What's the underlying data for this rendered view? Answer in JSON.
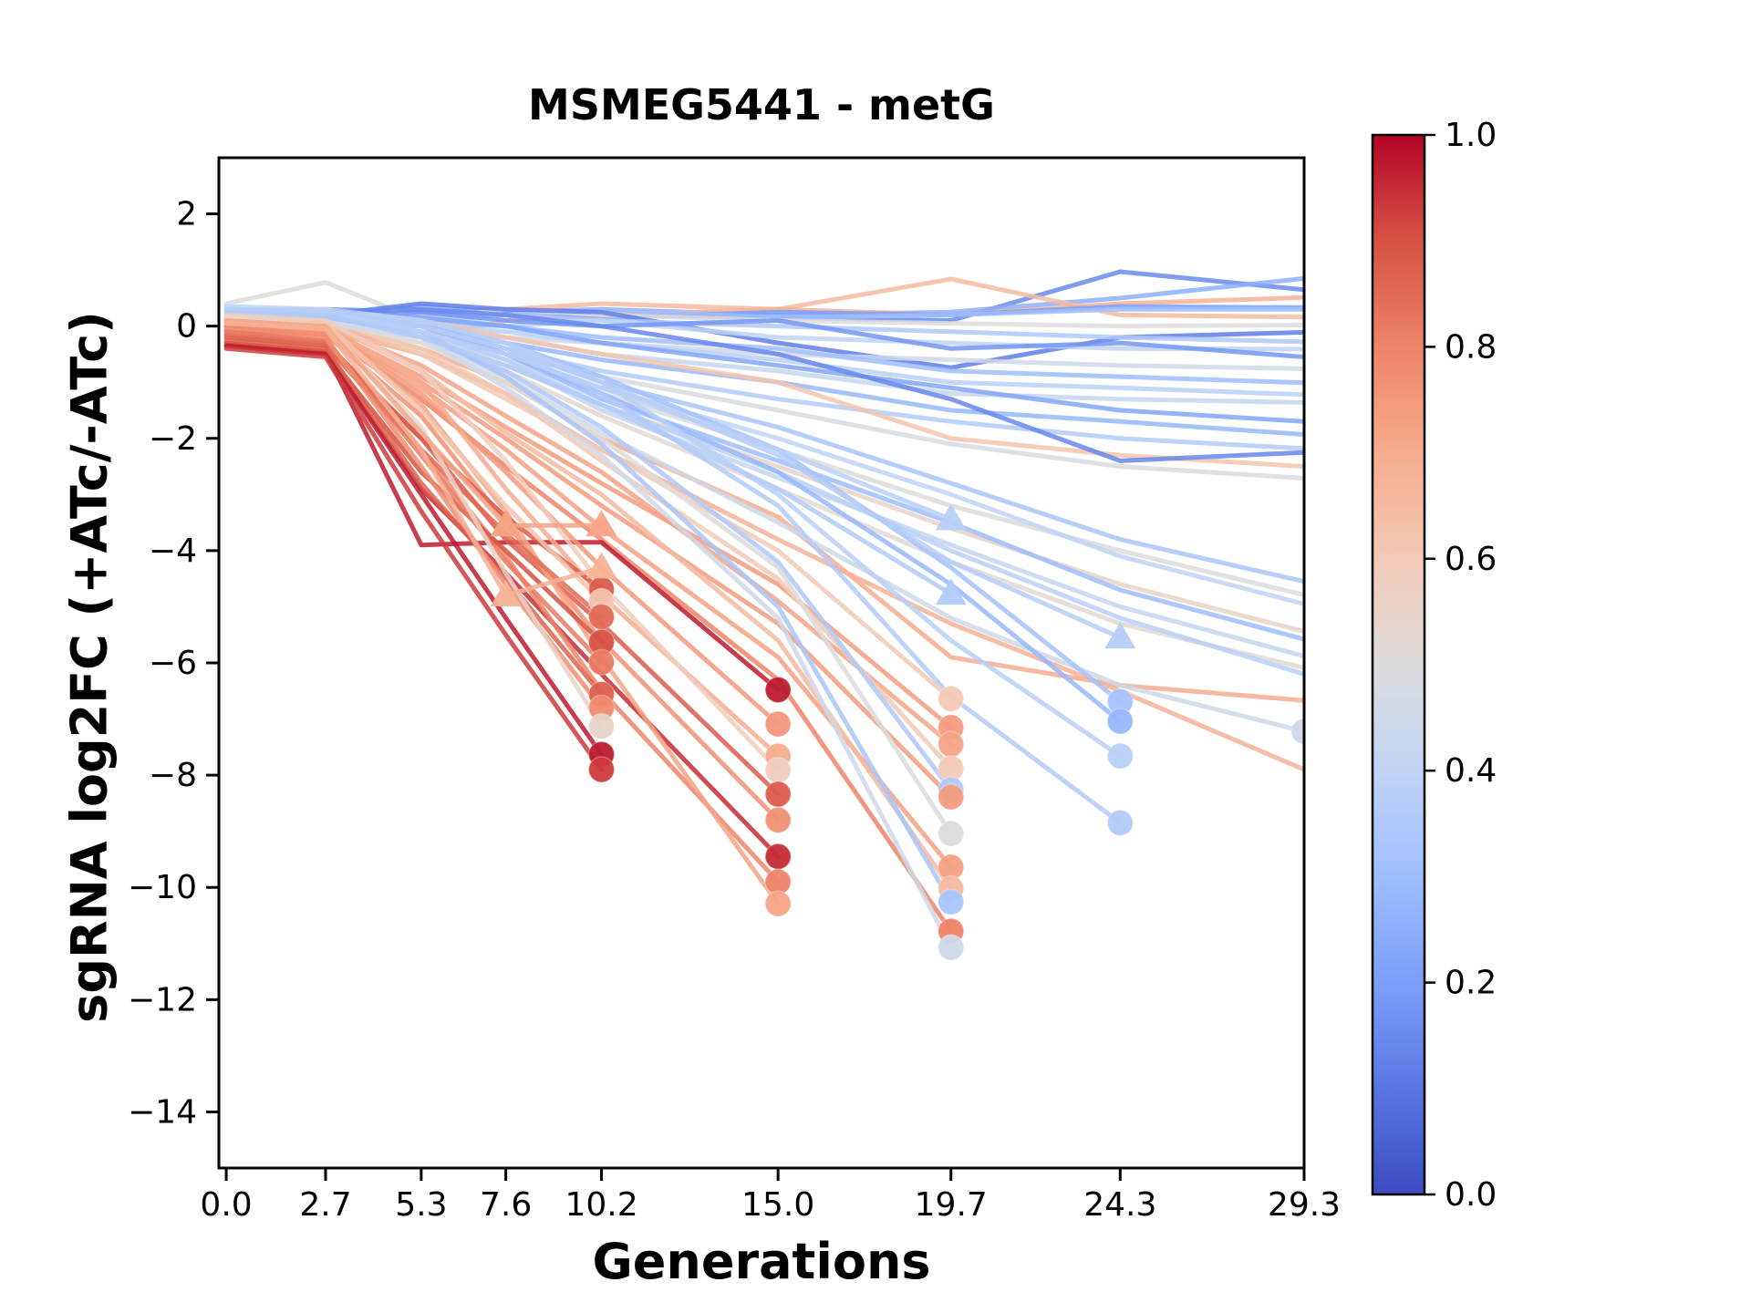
{
  "chart_data": {
    "type": "line",
    "title": "MSMEG5441 - metG",
    "xlabel": "Generations",
    "ylabel": "sgRNA log2FC (+ATc/-ATc)",
    "xlim": [
      -0.2,
      29.3
    ],
    "ylim": [
      -15,
      3
    ],
    "grid": false,
    "x_samples": [
      0.0,
      2.7,
      5.3,
      7.6,
      10.2,
      15.0,
      19.7,
      24.3,
      29.3
    ],
    "x_tick_labels": [
      "0.0",
      "2.7",
      "5.3",
      "7.6",
      "10.2",
      "15.0",
      "19.7",
      "24.3",
      "29.3"
    ],
    "y_ticks": [
      2,
      0,
      -2,
      -4,
      -6,
      -8,
      -10,
      -12,
      -14
    ],
    "y_tick_labels": [
      "2",
      "0",
      "−2",
      "−4",
      "−6",
      "−8",
      "−10",
      "−12",
      "−14"
    ],
    "colorbar": {
      "tick_values": [
        0.0,
        0.2,
        0.4,
        0.6,
        0.8,
        1.0
      ],
      "tick_labels": [
        "0.0",
        "0.2",
        "0.4",
        "0.6",
        "0.8",
        "1.0"
      ],
      "cmap_name": "coolwarm",
      "stops": [
        [
          0.0,
          "#3b4cc0"
        ],
        [
          0.1,
          "#5977e3"
        ],
        [
          0.2,
          "#7b9ff9"
        ],
        [
          0.3,
          "#9ebeff"
        ],
        [
          0.4,
          "#c0d4f5"
        ],
        [
          0.5,
          "#dddcdc"
        ],
        [
          0.6,
          "#f2cab5"
        ],
        [
          0.7,
          "#f7ac8e"
        ],
        [
          0.8,
          "#ee8468"
        ],
        [
          0.9,
          "#d65244"
        ],
        [
          1.0,
          "#b40426"
        ]
      ]
    },
    "series": [
      {
        "c": 0.15,
        "y": [
          0.2,
          0.3,
          0.25,
          0.3,
          0.2,
          0.15,
          0.1,
          0.97,
          0.65
        ]
      },
      {
        "c": 0.25,
        "y": [
          0.3,
          0.2,
          0.35,
          0.25,
          0.3,
          0.2,
          0.25,
          0.5,
          0.85
        ]
      },
      {
        "c": 0.65,
        "y": [
          0.1,
          0.2,
          0.1,
          0.3,
          0.4,
          0.3,
          0.84,
          0.2,
          0.16
        ]
      },
      {
        "c": 0.68,
        "y": [
          0.0,
          0.1,
          -0.2,
          0.1,
          0.2,
          0.3,
          0.2,
          0.4,
          0.51
        ]
      },
      {
        "c": 0.2,
        "y": [
          0.25,
          0.3,
          0.2,
          0.25,
          0.15,
          0.25,
          0.2,
          0.35,
          0.33
        ]
      },
      {
        "c": 0.3,
        "y": [
          0.2,
          0.25,
          0.3,
          0.2,
          0.3,
          0.15,
          0.2,
          0.3,
          0.3
        ]
      },
      {
        "c": 0.5,
        "y": [
          0.4,
          0.78,
          0.1,
          0.3,
          0.2,
          0.1,
          0.05,
          0.0,
          0.02
        ]
      },
      {
        "c": 0.12,
        "y": [
          0.15,
          0.2,
          0.4,
          0.3,
          0.25,
          -0.3,
          -0.74,
          -0.2,
          -0.11
        ]
      },
      {
        "c": 0.35,
        "y": [
          0.3,
          0.2,
          0.1,
          0.2,
          0.1,
          0.0,
          -0.1,
          -0.2,
          -0.28
        ]
      },
      {
        "c": 0.4,
        "y": [
          0.2,
          0.1,
          0.2,
          0.0,
          0.1,
          -0.2,
          -0.3,
          -0.4,
          -0.41
        ]
      },
      {
        "c": 0.18,
        "y": [
          0.1,
          0.15,
          0.25,
          0.1,
          0.0,
          0.1,
          -0.4,
          -0.3,
          -0.55
        ]
      },
      {
        "c": 0.45,
        "y": [
          0.3,
          0.3,
          0.0,
          -0.2,
          -0.3,
          -0.5,
          -0.6,
          -0.7,
          -0.76
        ]
      },
      {
        "c": 0.3,
        "y": [
          0.25,
          0.2,
          0.1,
          0.0,
          -0.2,
          -0.4,
          -0.8,
          -0.9,
          -1.01
        ]
      },
      {
        "c": 0.38,
        "y": [
          0.2,
          0.15,
          0.05,
          -0.1,
          -0.3,
          -0.6,
          -1.0,
          -1.1,
          -1.22
        ]
      },
      {
        "c": 0.42,
        "y": [
          0.15,
          0.1,
          0.0,
          -0.2,
          -0.5,
          -0.8,
          -1.2,
          -1.3,
          -1.36
        ]
      },
      {
        "c": 0.22,
        "y": [
          0.2,
          0.25,
          0.15,
          0.0,
          -0.3,
          -0.7,
          -1.1,
          -1.5,
          -1.7
        ]
      },
      {
        "c": 0.28,
        "y": [
          0.3,
          0.2,
          0.0,
          -0.3,
          -0.6,
          -1.0,
          -1.5,
          -1.7,
          -1.93
        ]
      },
      {
        "c": 0.36,
        "y": [
          0.25,
          0.15,
          -0.1,
          -0.4,
          -0.8,
          -1.3,
          -1.7,
          -2.0,
          -2.18
        ]
      },
      {
        "c": 0.62,
        "y": [
          0.2,
          0.3,
          0.1,
          -0.2,
          -0.5,
          -1.0,
          -2.0,
          -2.3,
          -2.5
        ]
      },
      {
        "c": 0.48,
        "y": [
          0.2,
          0.1,
          -0.1,
          -0.5,
          -0.9,
          -1.5,
          -2.1,
          -2.5,
          -2.71
        ]
      },
      {
        "c": 0.14,
        "y": [
          0.15,
          0.25,
          0.3,
          0.2,
          0.0,
          -0.5,
          -1.3,
          -2.4,
          -2.25
        ]
      },
      {
        "c": 0.33,
        "y": [
          0.2,
          0.1,
          0.0,
          -0.4,
          -1.0,
          -1.8,
          -2.8,
          -3.8,
          -4.55
        ]
      },
      {
        "c": 0.5,
        "y": [
          0.3,
          0.2,
          -0.1,
          -0.6,
          -1.2,
          -2.2,
          -3.2,
          -4.0,
          -4.79
        ]
      },
      {
        "c": 0.4,
        "y": [
          0.25,
          0.15,
          -0.1,
          -0.5,
          -1.1,
          -2.0,
          -3.0,
          -4.1,
          -4.95
        ]
      },
      {
        "c": 0.55,
        "y": [
          0.2,
          0.1,
          -0.2,
          -0.7,
          -1.4,
          -2.5,
          -3.6,
          -4.6,
          -5.44
        ]
      },
      {
        "c": 0.3,
        "y": [
          0.3,
          0.2,
          0.0,
          -0.5,
          -1.3,
          -2.4,
          -3.5,
          -4.7,
          -5.58
        ]
      },
      {
        "c": 0.42,
        "y": [
          0.2,
          0.15,
          -0.15,
          -0.6,
          -1.5,
          -2.7,
          -3.9,
          -5.0,
          -5.88
        ]
      },
      {
        "c": 0.52,
        "y": [
          0.15,
          0.05,
          -0.3,
          -0.8,
          -1.6,
          -2.9,
          -4.2,
          -5.3,
          -6.09
        ]
      },
      {
        "c": 0.38,
        "y": [
          0.25,
          0.2,
          -0.1,
          -0.6,
          -1.4,
          -2.6,
          -4.0,
          -5.2,
          -6.2
        ]
      },
      {
        "c": 0.7,
        "y": [
          0.1,
          0.0,
          -0.4,
          -1.0,
          -2.0,
          -3.4,
          -5.9,
          -6.4,
          -6.67
        ]
      },
      {
        "c": 0.68,
        "y": [
          0.05,
          -0.05,
          -0.5,
          -1.2,
          -2.2,
          -3.8,
          -5.3,
          -6.5,
          -7.9
        ]
      },
      {
        "c": 0.45,
        "m": "c",
        "y": [
          0.2,
          0.1,
          -0.3,
          -0.9,
          -1.9,
          -3.5,
          -5.2,
          -6.4,
          -7.22
        ]
      },
      {
        "c": 0.32,
        "m": "c",
        "y": [
          0.3,
          0.25,
          0.1,
          -0.3,
          -0.9,
          -2.2,
          -4.3,
          -6.69
        ]
      },
      {
        "c": 0.28,
        "m": "c",
        "y": [
          0.25,
          0.2,
          0.0,
          -0.5,
          -1.2,
          -2.6,
          -4.6,
          -7.04
        ]
      },
      {
        "c": 0.38,
        "m": "c",
        "y": [
          0.35,
          0.3,
          0.1,
          -0.3,
          -1.0,
          -3.0,
          -5.6,
          -7.66
        ]
      },
      {
        "c": 0.36,
        "m": "c",
        "y": [
          0.3,
          0.2,
          0.0,
          -0.4,
          -1.2,
          -3.2,
          -6.6,
          -8.85
        ]
      },
      {
        "c": 0.37,
        "m": "t",
        "y": [
          0.3,
          0.25,
          0.0,
          -0.4,
          -1.0,
          -2.3,
          -4.2,
          -5.55
        ]
      },
      {
        "c": 0.6,
        "m": "c",
        "y": [
          0.2,
          0.15,
          -0.5,
          -1.3,
          -2.2,
          -4.0,
          -6.64
        ]
      },
      {
        "c": 0.74,
        "m": "c",
        "y": [
          0.05,
          -0.05,
          -0.9,
          -1.8,
          -2.8,
          -4.6,
          -7.15
        ]
      },
      {
        "c": 0.72,
        "m": "c",
        "y": [
          0.1,
          0.0,
          -0.7,
          -1.6,
          -2.6,
          -4.9,
          -7.45
        ]
      },
      {
        "c": 0.6,
        "m": "c",
        "y": [
          0.15,
          0.1,
          -0.4,
          -1.2,
          -2.4,
          -4.5,
          -7.88
        ]
      },
      {
        "c": 0.35,
        "m": "c",
        "y": [
          0.3,
          0.2,
          -0.2,
          -0.8,
          -1.8,
          -4.2,
          -8.26
        ]
      },
      {
        "c": 0.74,
        "m": "c",
        "y": [
          0.0,
          -0.1,
          -1.0,
          -2.0,
          -3.2,
          -5.3,
          -8.39
        ]
      },
      {
        "c": 0.5,
        "m": "c",
        "y": [
          0.2,
          0.1,
          -0.3,
          -1.0,
          -2.0,
          -4.3,
          -9.04
        ]
      },
      {
        "c": 0.73,
        "m": "c",
        "y": [
          0.05,
          -0.05,
          -1.1,
          -2.2,
          -3.6,
          -5.9,
          -9.64
        ]
      },
      {
        "c": 0.65,
        "m": "c",
        "y": [
          0.1,
          0.05,
          -0.8,
          -1.9,
          -3.0,
          -5.6,
          -10.02
        ]
      },
      {
        "c": 0.33,
        "m": "c",
        "y": [
          0.25,
          0.15,
          -0.1,
          -0.9,
          -2.1,
          -5.0,
          -10.26
        ]
      },
      {
        "c": 0.8,
        "m": "c",
        "y": [
          -0.05,
          -0.15,
          -1.3,
          -2.5,
          -3.8,
          -6.3,
          -10.78
        ]
      },
      {
        "c": 0.45,
        "m": "c",
        "y": [
          0.15,
          0.05,
          -0.2,
          -1.1,
          -2.3,
          -5.2,
          -11.07
        ]
      },
      {
        "c": 0.38,
        "m": "t",
        "y": [
          0.3,
          0.25,
          -0.1,
          -0.5,
          -1.1,
          -2.2,
          -3.44
        ]
      },
      {
        "c": 0.36,
        "m": "t",
        "y": [
          0.25,
          0.2,
          -0.2,
          -0.7,
          -1.4,
          -2.9,
          -4.77
        ]
      },
      {
        "c": 0.97,
        "m": "c",
        "y": [
          -0.3,
          -0.45,
          -3.9,
          -3.85,
          -3.85,
          -6.48
        ]
      },
      {
        "c": 0.75,
        "m": "c",
        "y": [
          0.05,
          -0.1,
          -1.2,
          -2.6,
          -4.3,
          -7.09
        ]
      },
      {
        "c": 0.7,
        "m": "c",
        "y": [
          0.1,
          0.0,
          -1.0,
          -2.9,
          -4.8,
          -7.66
        ]
      },
      {
        "c": 0.58,
        "m": "c",
        "y": [
          0.2,
          0.1,
          -0.8,
          -2.4,
          -4.6,
          -7.91
        ]
      },
      {
        "c": 0.88,
        "m": "c",
        "y": [
          -0.2,
          -0.35,
          -2.0,
          -3.8,
          -5.3,
          -8.34
        ]
      },
      {
        "c": 0.77,
        "m": "c",
        "y": [
          0.0,
          -0.15,
          -1.6,
          -3.5,
          -5.6,
          -8.8
        ]
      },
      {
        "c": 0.95,
        "m": "c",
        "y": [
          -0.35,
          -0.5,
          -2.9,
          -4.4,
          -6.2,
          -9.45
        ]
      },
      {
        "c": 0.8,
        "m": "c",
        "y": [
          -0.1,
          -0.25,
          -2.2,
          -4.1,
          -6.5,
          -9.9
        ]
      },
      {
        "c": 0.72,
        "m": "c",
        "y": [
          0.1,
          -0.05,
          -1.4,
          -3.3,
          -5.9,
          -10.29
        ]
      },
      {
        "c": 0.88,
        "m": "c",
        "y": [
          -0.15,
          -0.3,
          -2.0,
          -3.4,
          -4.69
        ]
      },
      {
        "c": 0.62,
        "m": "c",
        "y": [
          0.1,
          0.05,
          -1.5,
          -3.2,
          -4.9
        ]
      },
      {
        "c": 0.85,
        "m": "c",
        "y": [
          -0.2,
          -0.35,
          -2.2,
          -3.7,
          -5.18
        ]
      },
      {
        "c": 0.9,
        "m": "c",
        "y": [
          -0.3,
          -0.45,
          -2.6,
          -4.0,
          -5.63
        ]
      },
      {
        "c": 0.82,
        "m": "c",
        "y": [
          -0.1,
          -0.25,
          -2.3,
          -4.2,
          -5.99
        ]
      },
      {
        "c": 0.87,
        "m": "c",
        "y": [
          -0.25,
          -0.4,
          -2.8,
          -4.5,
          -6.56
        ]
      },
      {
        "c": 0.78,
        "m": "c",
        "y": [
          0.0,
          -0.2,
          -2.5,
          -4.6,
          -6.8
        ]
      },
      {
        "c": 0.55,
        "m": "c",
        "y": [
          0.15,
          0.0,
          -1.8,
          -4.4,
          -7.13
        ]
      },
      {
        "c": 0.97,
        "m": "c",
        "y": [
          -0.35,
          -0.5,
          -3.0,
          -5.2,
          -7.63
        ]
      },
      {
        "c": 0.93,
        "m": "c",
        "y": [
          -0.4,
          -0.55,
          -3.3,
          -5.5,
          -7.9
        ]
      },
      {
        "c": 0.72,
        "m": "t",
        "t2": true,
        "y": [
          0.1,
          0.0,
          -1.9,
          -3.55,
          -3.55
        ]
      },
      {
        "c": 0.68,
        "m": "t",
        "t2": true,
        "y": [
          0.05,
          -0.05,
          -2.2,
          -4.8,
          -4.3
        ]
      }
    ]
  }
}
